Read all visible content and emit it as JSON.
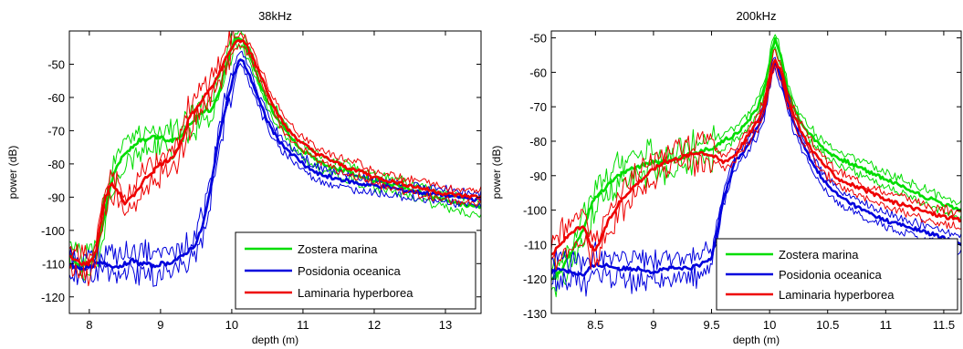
{
  "colors": {
    "zostera": "#00dd00",
    "posidonia": "#0000dd",
    "laminaria": "#ee0000",
    "axis": "#000000",
    "background": "#ffffff"
  },
  "chart_data": [
    {
      "type": "line",
      "title": "38kHz",
      "xlabel": "depth (m)",
      "ylabel": "power (dB)",
      "xlim": [
        7.72,
        13.5
      ],
      "ylim": [
        -125,
        -40
      ],
      "xticks": [
        8,
        9,
        10,
        11,
        12,
        13
      ],
      "yticks": [
        -120,
        -110,
        -100,
        -90,
        -80,
        -70,
        -60,
        -50
      ],
      "grid": false,
      "legend_position": "bottom-right",
      "series": [
        {
          "name": "Zostera marina",
          "color_key": "zostera",
          "x": [
            7.72,
            7.8,
            7.9,
            8.0,
            8.1,
            8.2,
            8.3,
            8.4,
            8.5,
            8.6,
            8.7,
            8.8,
            8.9,
            9.0,
            9.1,
            9.2,
            9.3,
            9.4,
            9.5,
            9.6,
            9.7,
            9.8,
            9.9,
            10.0,
            10.05,
            10.1,
            10.15,
            10.2,
            10.3,
            10.4,
            10.5,
            10.6,
            10.7,
            10.8,
            10.9,
            11.0,
            11.2,
            11.4,
            11.6,
            11.8,
            12.0,
            12.2,
            12.4,
            12.6,
            12.8,
            13.0,
            13.2,
            13.5
          ],
          "values": [
            -107,
            -110,
            -111,
            -110,
            -107,
            -97,
            -86,
            -80,
            -77,
            -75,
            -73,
            -73,
            -72,
            -72,
            -73,
            -73,
            -71,
            -68,
            -66,
            -64,
            -64,
            -60,
            -52,
            -45,
            -42,
            -42,
            -43,
            -45,
            -50,
            -56,
            -61,
            -65,
            -68,
            -71,
            -74,
            -76,
            -79,
            -81,
            -82,
            -84,
            -85,
            -86,
            -87,
            -88,
            -90,
            -91,
            -92,
            -93
          ]
        },
        {
          "name": "Posidonia oceanica",
          "color_key": "posidonia",
          "x": [
            7.72,
            7.8,
            7.9,
            8.0,
            8.1,
            8.2,
            8.3,
            8.4,
            8.5,
            8.6,
            8.7,
            8.8,
            8.9,
            9.0,
            9.1,
            9.2,
            9.3,
            9.4,
            9.5,
            9.6,
            9.7,
            9.8,
            9.9,
            10.0,
            10.05,
            10.1,
            10.15,
            10.2,
            10.3,
            10.4,
            10.5,
            10.6,
            10.7,
            10.8,
            10.9,
            11.0,
            11.2,
            11.4,
            11.6,
            11.8,
            12.0,
            12.2,
            12.4,
            12.6,
            12.8,
            13.0,
            13.2,
            13.5
          ],
          "values": [
            -110,
            -111,
            -111.5,
            -111,
            -110,
            -110,
            -110.5,
            -111,
            -110,
            -109,
            -110,
            -110,
            -111,
            -110,
            -110,
            -109,
            -108,
            -106,
            -104,
            -98,
            -88,
            -74,
            -64,
            -56,
            -52,
            -49,
            -49,
            -51,
            -56,
            -62,
            -67,
            -71,
            -74,
            -76,
            -78,
            -80,
            -83,
            -84,
            -85,
            -86,
            -86.5,
            -87,
            -88,
            -88.5,
            -89,
            -89.5,
            -90,
            -91
          ]
        },
        {
          "name": "Laminaria hyperborea",
          "color_key": "laminaria",
          "x": [
            7.72,
            7.8,
            7.9,
            8.0,
            8.1,
            8.2,
            8.3,
            8.4,
            8.5,
            8.6,
            8.7,
            8.8,
            8.9,
            9.0,
            9.1,
            9.2,
            9.3,
            9.4,
            9.5,
            9.6,
            9.7,
            9.8,
            9.9,
            10.0,
            10.05,
            10.1,
            10.15,
            10.2,
            10.3,
            10.4,
            10.5,
            10.6,
            10.7,
            10.8,
            10.9,
            11.0,
            11.2,
            11.4,
            11.6,
            11.8,
            12.0,
            12.2,
            12.4,
            12.6,
            12.8,
            13.0,
            13.2,
            13.5
          ],
          "values": [
            -108,
            -109,
            -110,
            -110,
            -106,
            -92,
            -86,
            -88,
            -92,
            -90,
            -87,
            -84,
            -82,
            -80,
            -79,
            -77,
            -73,
            -66,
            -64,
            -60,
            -57,
            -54,
            -49,
            -45,
            -44,
            -43,
            -43,
            -44,
            -48,
            -53,
            -58,
            -63,
            -67,
            -70,
            -72,
            -74,
            -77,
            -79,
            -81,
            -82,
            -84,
            -85,
            -86,
            -87,
            -88,
            -89,
            -89.5,
            -90
          ]
        }
      ]
    },
    {
      "type": "line",
      "title": "200kHz",
      "xlabel": "depth (m)",
      "ylabel": "power (dB)",
      "xlim": [
        8.12,
        11.65
      ],
      "ylim": [
        -130,
        -48
      ],
      "xticks": [
        8.5,
        9,
        9.5,
        10,
        10.5,
        11,
        11.5
      ],
      "yticks": [
        -130,
        -120,
        -110,
        -100,
        -90,
        -80,
        -70,
        -60,
        -50
      ],
      "grid": false,
      "legend_position": "bottom-right",
      "series": [
        {
          "name": "Zostera marina",
          "color_key": "zostera",
          "x": [
            8.12,
            8.2,
            8.3,
            8.4,
            8.45,
            8.5,
            8.6,
            8.7,
            8.8,
            8.9,
            9.0,
            9.1,
            9.2,
            9.3,
            9.4,
            9.5,
            9.6,
            9.7,
            9.8,
            9.9,
            9.95,
            10.0,
            10.03,
            10.05,
            10.1,
            10.15,
            10.2,
            10.3,
            10.4,
            10.5,
            10.6,
            10.8,
            11.0,
            11.2,
            11.4,
            11.65
          ],
          "values": [
            -120,
            -118,
            -112,
            -105,
            -100,
            -96,
            -93,
            -90,
            -88,
            -87,
            -86,
            -86,
            -85,
            -84,
            -83,
            -82,
            -80,
            -78,
            -75,
            -70,
            -65,
            -58,
            -52,
            -50,
            -56,
            -64,
            -70,
            -76,
            -80,
            -83,
            -85,
            -88,
            -91,
            -94,
            -97,
            -100
          ]
        },
        {
          "name": "Posidonia oceanica",
          "color_key": "posidonia",
          "x": [
            8.12,
            8.2,
            8.3,
            8.4,
            8.45,
            8.5,
            8.6,
            8.7,
            8.8,
            8.9,
            9.0,
            9.1,
            9.2,
            9.3,
            9.4,
            9.5,
            9.6,
            9.7,
            9.8,
            9.9,
            9.95,
            10.0,
            10.03,
            10.05,
            10.1,
            10.15,
            10.2,
            10.3,
            10.4,
            10.5,
            10.6,
            10.8,
            11.0,
            11.2,
            11.4,
            11.65
          ],
          "values": [
            -118,
            -117,
            -118,
            -119,
            -117,
            -116,
            -116,
            -117,
            -117,
            -117,
            -118,
            -117,
            -117,
            -117,
            -116,
            -114,
            -97,
            -86,
            -82,
            -76,
            -72,
            -63,
            -58,
            -57,
            -62,
            -68,
            -74,
            -82,
            -88,
            -93,
            -96,
            -100,
            -103,
            -105,
            -107,
            -110
          ]
        },
        {
          "name": "Laminaria hyperborea",
          "color_key": "laminaria",
          "x": [
            8.12,
            8.2,
            8.3,
            8.4,
            8.45,
            8.5,
            8.6,
            8.7,
            8.8,
            8.9,
            9.0,
            9.1,
            9.2,
            9.3,
            9.4,
            9.5,
            9.6,
            9.7,
            9.8,
            9.9,
            9.95,
            10.0,
            10.03,
            10.05,
            10.1,
            10.15,
            10.2,
            10.3,
            10.4,
            10.5,
            10.6,
            10.8,
            11.0,
            11.2,
            11.4,
            11.65
          ],
          "values": [
            -113,
            -110,
            -106,
            -105,
            -110,
            -112,
            -104,
            -98,
            -94,
            -91,
            -88,
            -86,
            -85,
            -84,
            -83,
            -84,
            -86,
            -84,
            -79,
            -74,
            -70,
            -62,
            -57,
            -56,
            -60,
            -67,
            -72,
            -79,
            -84,
            -88,
            -91,
            -94,
            -97,
            -99,
            -101,
            -103
          ]
        }
      ]
    }
  ]
}
